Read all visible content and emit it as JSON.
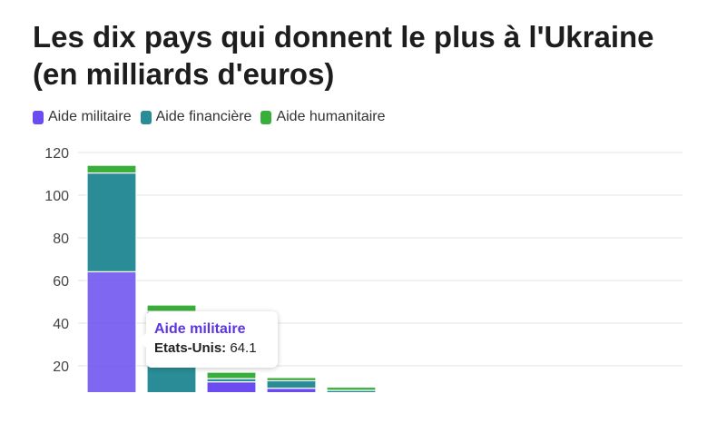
{
  "chart_data": {
    "type": "bar",
    "stacked": true,
    "title": "Les dix pays qui donnent le plus à l'Ukraine (en milliards d'euros)",
    "xlabel": "",
    "ylabel": "",
    "ylim": [
      8,
      120
    ],
    "yticks": [
      20,
      40,
      60,
      80,
      100,
      120
    ],
    "grid": true,
    "legend_position": "top-left",
    "categories": [
      "Etats-Unis",
      "",
      "",
      "",
      "",
      "",
      ""
    ],
    "series": [
      {
        "name": "Aide militaire",
        "color": "#6a4cf0",
        "values": [
          64.1,
          4.0,
          12.5,
          9.5,
          6.5,
          3.0,
          2.5
        ]
      },
      {
        "name": "Aide financière",
        "color": "#2a8c96",
        "values": [
          46.3,
          41.5,
          1.5,
          3.5,
          2.0,
          0.2,
          0.2
        ]
      },
      {
        "name": "Aide humanitaire",
        "color": "#3aae3a",
        "values": [
          3.6,
          3.0,
          3.0,
          1.5,
          1.5,
          0.3,
          0.4
        ]
      }
    ]
  },
  "tooltip": {
    "series": "Aide militaire",
    "category": "Etats-Unis:",
    "value": "64.1"
  }
}
